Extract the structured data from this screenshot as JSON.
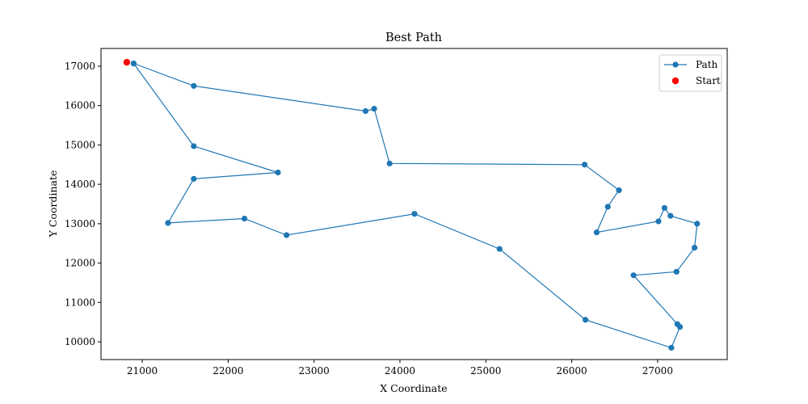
{
  "chart_data": {
    "type": "line",
    "title": "Best Path",
    "xlabel": "X Coordinate",
    "ylabel": "Y Coordinate",
    "xlim": [
      20520,
      27810
    ],
    "ylim": [
      9550,
      17450
    ],
    "xticks": [
      21000,
      22000,
      23000,
      24000,
      25000,
      26000,
      27000
    ],
    "yticks": [
      10000,
      11000,
      12000,
      13000,
      14000,
      15000,
      16000,
      17000
    ],
    "grid": false,
    "legend_position": "top-right",
    "colors": {
      "path": "#1f77b4",
      "start": "#ff0000"
    },
    "series": [
      {
        "name": "Path",
        "x": [
          20900,
          21600,
          23600,
          23700,
          23880,
          26150,
          26550,
          26420,
          26290,
          27010,
          27080,
          27150,
          27460,
          27430,
          27220,
          26720,
          27230,
          27260,
          27160,
          26160,
          25160,
          24170,
          22680,
          22190,
          21300,
          21600,
          22580,
          21600,
          20900
        ],
        "y": [
          17070,
          16500,
          15860,
          15920,
          14530,
          14500,
          13850,
          13430,
          12780,
          13060,
          13400,
          13200,
          13000,
          12390,
          11780,
          11690,
          10450,
          10380,
          9850,
          10560,
          12360,
          13250,
          12710,
          13130,
          13020,
          14140,
          14300,
          14970,
          17070
        ]
      },
      {
        "name": "Start",
        "x": [
          20820
        ],
        "y": [
          17100
        ]
      }
    ]
  }
}
